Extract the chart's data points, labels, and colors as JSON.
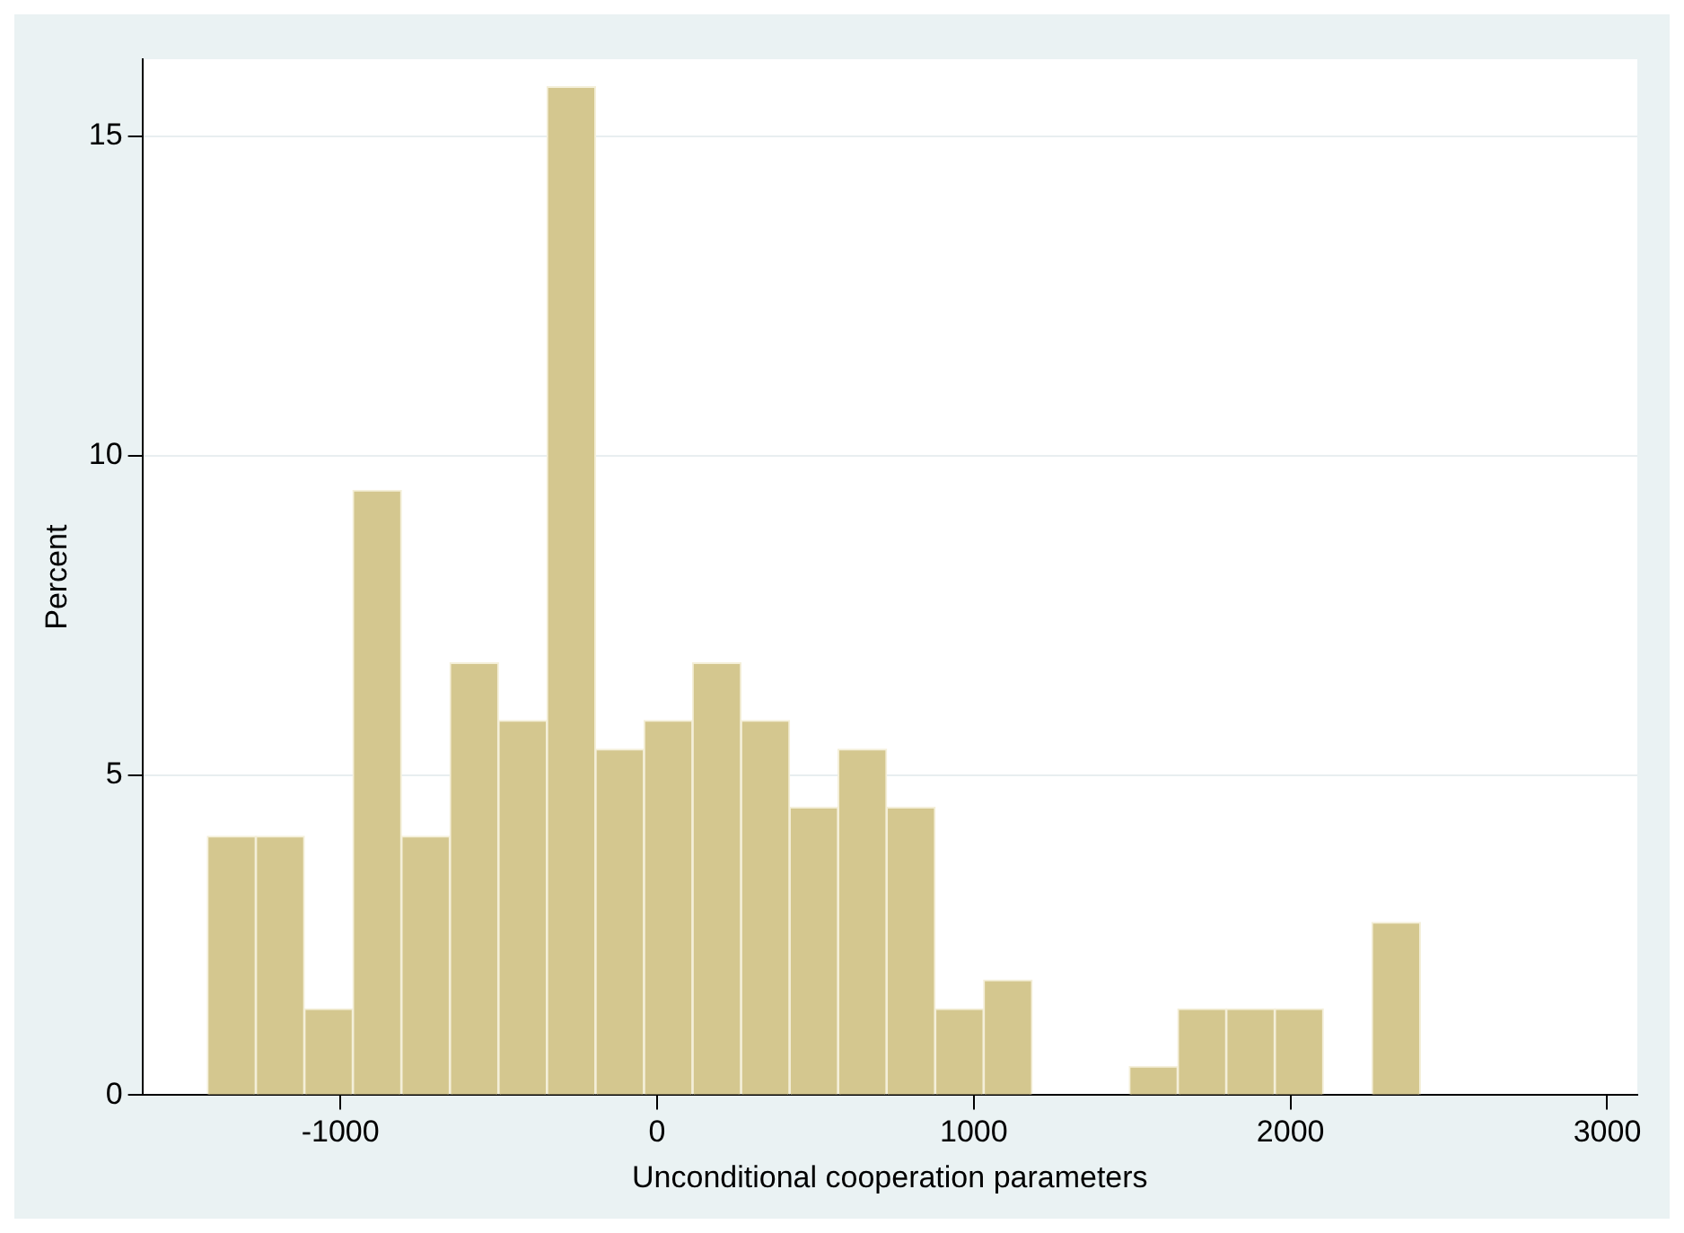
{
  "chart_data": {
    "type": "histogram",
    "xlabel": "Unconditional cooperation parameters",
    "ylabel": "Percent",
    "bins": [
      -1420,
      -1266.8,
      -1113.6,
      -960.4,
      -807.2,
      -654,
      -500.8,
      -347.6,
      -194.4,
      -41.2,
      112,
      265.2,
      418.4,
      571.6,
      724.8,
      878,
      1031.2,
      1184.4,
      1337.6,
      1490.8,
      1644,
      1797.2,
      1950.4,
      2103.6,
      2256.8,
      2410
    ],
    "values": [
      4.05,
      4.05,
      1.35,
      9.46,
      4.05,
      6.76,
      5.86,
      15.77,
      5.41,
      5.86,
      6.76,
      5.86,
      4.5,
      5.41,
      4.5,
      1.35,
      1.8,
      0,
      0,
      0.45,
      1.35,
      1.35,
      1.35,
      0,
      2.7
    ],
    "color": "#d4c78f",
    "xlim": [
      -1625,
      3095
    ],
    "xticks": [
      -1000,
      0,
      1000,
      2000,
      3000
    ],
    "ylim": [
      0,
      16.2
    ],
    "yticks": [
      0,
      5,
      10,
      15
    ],
    "grid": "y",
    "legend": false
  }
}
